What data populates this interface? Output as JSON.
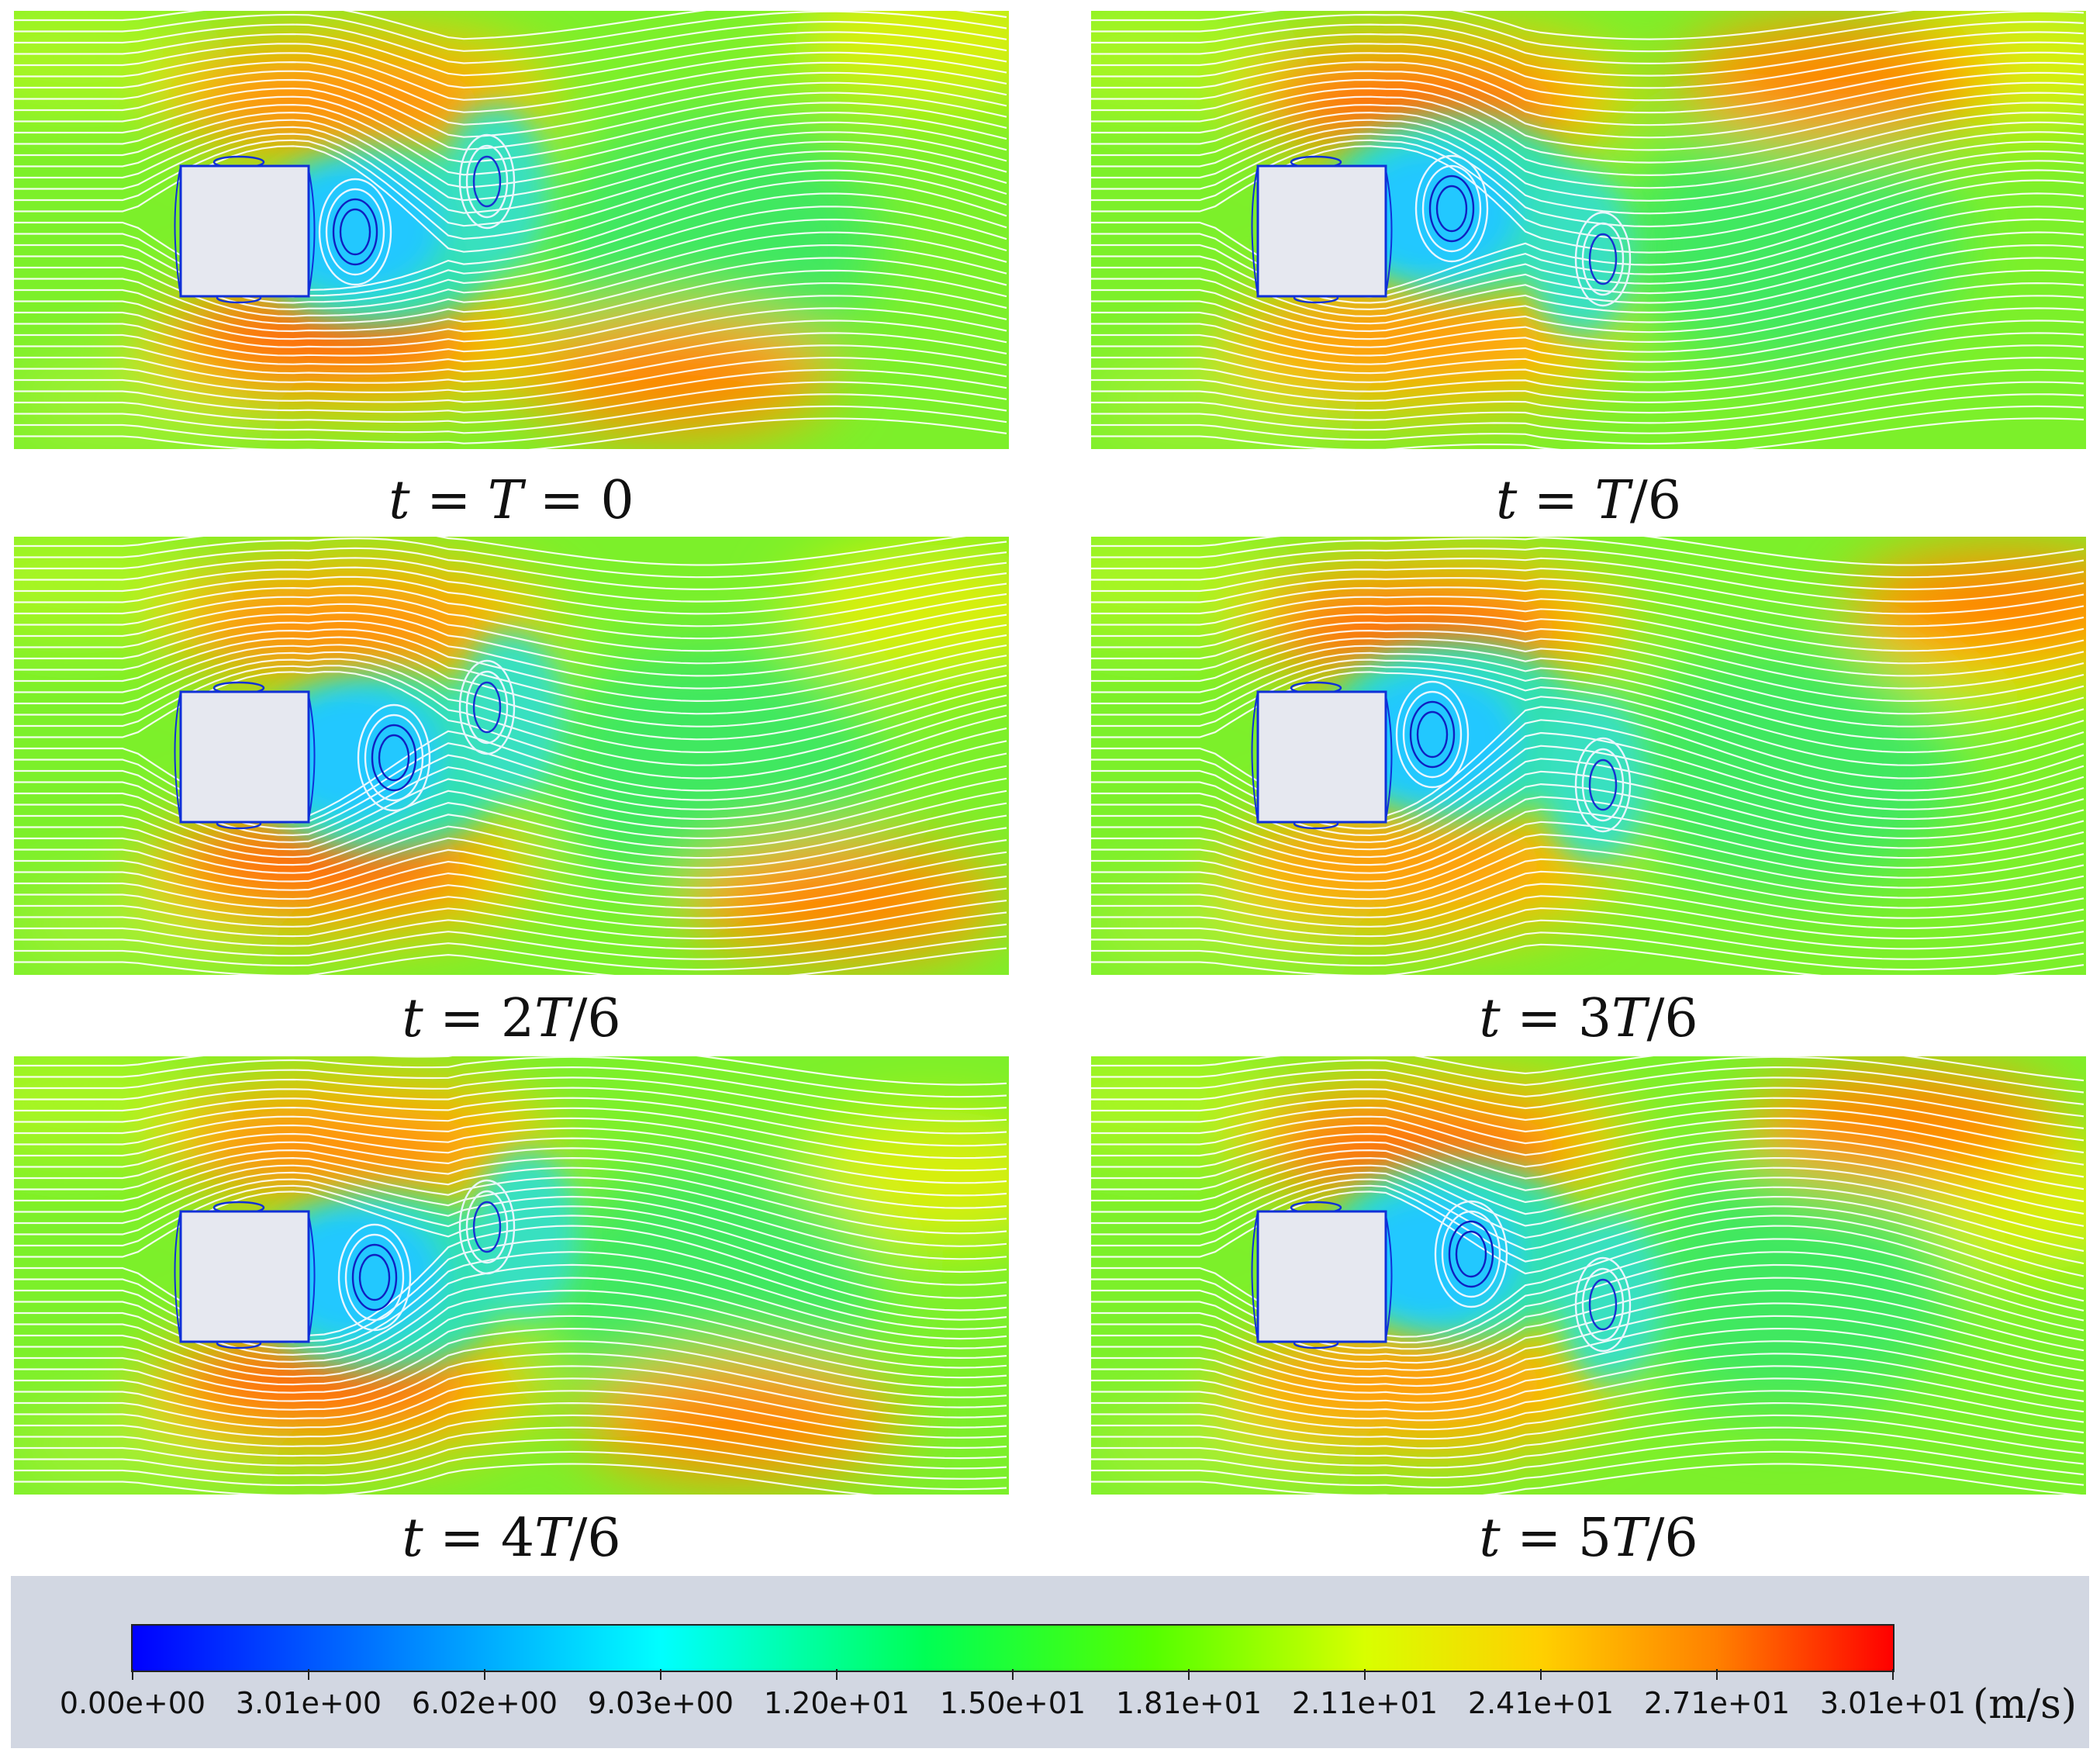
{
  "panels": [
    {
      "id": "p0",
      "caption": [
        "t",
        " = ",
        "T",
        " = 0"
      ],
      "phase": 0,
      "inlet_cutout": "right"
    },
    {
      "id": "p1",
      "caption": [
        "t",
        " = ",
        "T",
        "/6"
      ],
      "phase": 1,
      "inlet_cutout": "none"
    },
    {
      "id": "p2",
      "caption": [
        "t",
        " = 2",
        "T",
        "/6"
      ],
      "phase": 2,
      "inlet_cutout": "right"
    },
    {
      "id": "p3",
      "caption": [
        "t",
        " = 3",
        "T",
        "/6"
      ],
      "phase": 3,
      "inlet_cutout": "left"
    },
    {
      "id": "p4",
      "caption": [
        "t",
        " = 4",
        "T",
        "/6"
      ],
      "phase": 4,
      "inlet_cutout": "right"
    },
    {
      "id": "p5",
      "caption": [
        "t",
        " = 5",
        "T",
        "/6"
      ],
      "phase": 5,
      "inlet_cutout": "none"
    }
  ],
  "legend": {
    "ticks": [
      "0.00e+00",
      "3.01e+00",
      "6.02e+00",
      "9.03e+00",
      "1.20e+01",
      "1.50e+01",
      "1.81e+01",
      "2.11e+01",
      "2.41e+01",
      "2.71e+01",
      "3.01e+01"
    ],
    "unit": "(m/s)",
    "colors": [
      "#0000ff",
      "#0080ff",
      "#00ffff",
      "#00ff55",
      "#55ff00",
      "#d8ff00",
      "#ffd000",
      "#ff8000",
      "#ff0000"
    ]
  }
}
